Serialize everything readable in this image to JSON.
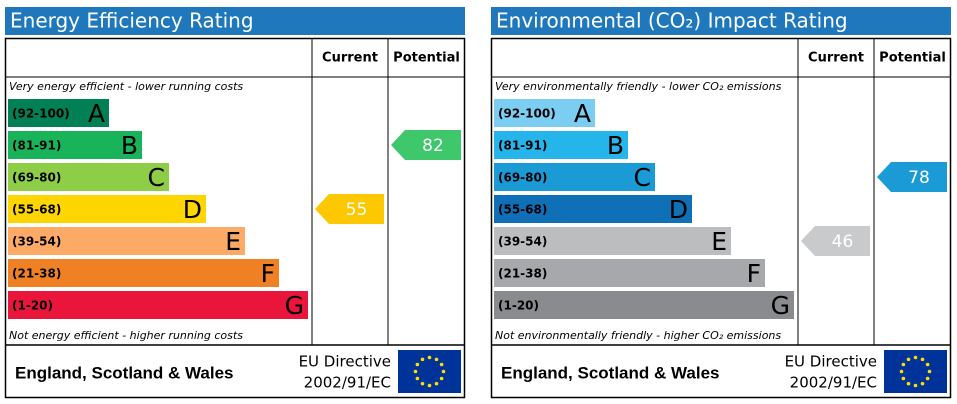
{
  "panels": [
    {
      "title": "Energy Efficiency Rating",
      "col_current": "Current",
      "col_potential": "Potential",
      "top_note": "Very energy efficient - lower running costs",
      "bottom_note": "Not energy efficient - higher running costs",
      "bands": [
        {
          "range": "(92-100)",
          "letter": "A",
          "color": "#008054"
        },
        {
          "range": "(81-91)",
          "letter": "B",
          "color": "#19b459"
        },
        {
          "range": "(69-80)",
          "letter": "C",
          "color": "#8dce46"
        },
        {
          "range": "(55-68)",
          "letter": "D",
          "color": "#ffd500"
        },
        {
          "range": "(39-54)",
          "letter": "E",
          "color": "#fcaa65"
        },
        {
          "range": "(21-38)",
          "letter": "F",
          "color": "#ef8023"
        },
        {
          "range": "(1-20)",
          "letter": "G",
          "color": "#e9153b"
        }
      ],
      "current": {
        "value": 55,
        "color": "#fdc800"
      },
      "potential": {
        "value": 82,
        "color": "#3fc76c"
      },
      "footer": {
        "region": "England, Scotland & Wales",
        "directive": "EU Directive",
        "directive_no": "2002/91/EC"
      }
    },
    {
      "title": "Environmental (CO₂) Impact Rating",
      "col_current": "Current",
      "col_potential": "Potential",
      "top_note": "Very environmentally friendly - lower CO₂ emissions",
      "bottom_note": "Not environmentally friendly - higher CO₂ emissions",
      "bands": [
        {
          "range": "(92-100)",
          "letter": "A",
          "color": "#7ccdf2"
        },
        {
          "range": "(81-91)",
          "letter": "B",
          "color": "#25b5ea"
        },
        {
          "range": "(69-80)",
          "letter": "C",
          "color": "#1a9bd6"
        },
        {
          "range": "(55-68)",
          "letter": "D",
          "color": "#0f70b8"
        },
        {
          "range": "(39-54)",
          "letter": "E",
          "color": "#bbbdbf"
        },
        {
          "range": "(21-38)",
          "letter": "F",
          "color": "#a6a8ab"
        },
        {
          "range": "(1-20)",
          "letter": "G",
          "color": "#898b8e"
        }
      ],
      "current": {
        "value": 46,
        "color": "#c8cacc"
      },
      "potential": {
        "value": 78,
        "color": "#1b9bd6"
      },
      "footer": {
        "region": "England, Scotland & Wales",
        "directive": "EU Directive",
        "directive_no": "2002/91/EC"
      }
    }
  ]
}
